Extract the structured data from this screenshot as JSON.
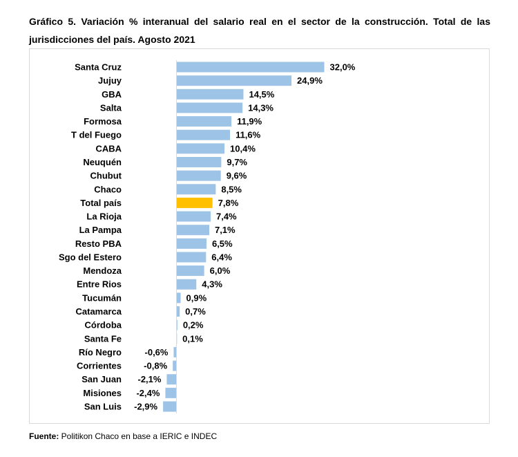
{
  "chart_data": {
    "type": "bar",
    "orientation": "horizontal",
    "title": "Gráfico 5. Variación % interanual del salario real en el sector de la construcción. Total de las jurisdicciones del país. Agosto 2021",
    "categories": [
      "Santa Cruz",
      "Jujuy",
      "GBA",
      "Salta",
      "Formosa",
      "T del Fuego",
      "CABA",
      "Neuquén",
      "Chubut",
      "Chaco",
      "Total país",
      "La Rioja",
      "La Pampa",
      "Resto PBA",
      "Sgo del Estero",
      "Mendoza",
      "Entre Rios",
      "Tucumán",
      "Catamarca",
      "Córdoba",
      "Santa Fe",
      "Río Negro",
      "Corrientes",
      "San Juan",
      "Misiones",
      "San Luis"
    ],
    "values": [
      32.0,
      24.9,
      14.5,
      14.3,
      11.9,
      11.6,
      10.4,
      9.7,
      9.6,
      8.5,
      7.8,
      7.4,
      7.1,
      6.5,
      6.4,
      6.0,
      4.3,
      0.9,
      0.7,
      0.2,
      0.1,
      -0.6,
      -0.8,
      -2.1,
      -2.4,
      -2.9
    ],
    "data_labels": [
      "32,0%",
      "24,9%",
      "14,5%",
      "14,3%",
      "11,9%",
      "11,6%",
      "10,4%",
      "9,7%",
      "9,6%",
      "8,5%",
      "7,8%",
      "7,4%",
      "7,1%",
      "6,5%",
      "6,4%",
      "6,0%",
      "4,3%",
      "0,9%",
      "0,7%",
      "0,2%",
      "0,1%",
      "-0,6%",
      "-0,8%",
      "-2,1%",
      "-2,4%",
      "-2,9%"
    ],
    "highlight_category": "Total país",
    "colors": {
      "bar": "#9dc3e6",
      "highlight": "#ffc000"
    },
    "xlabel": "",
    "ylabel": "",
    "grid": false,
    "legend": "none"
  },
  "source": {
    "label": "Fuente:",
    "text": " Politikon Chaco en base a IERIC e INDEC"
  }
}
